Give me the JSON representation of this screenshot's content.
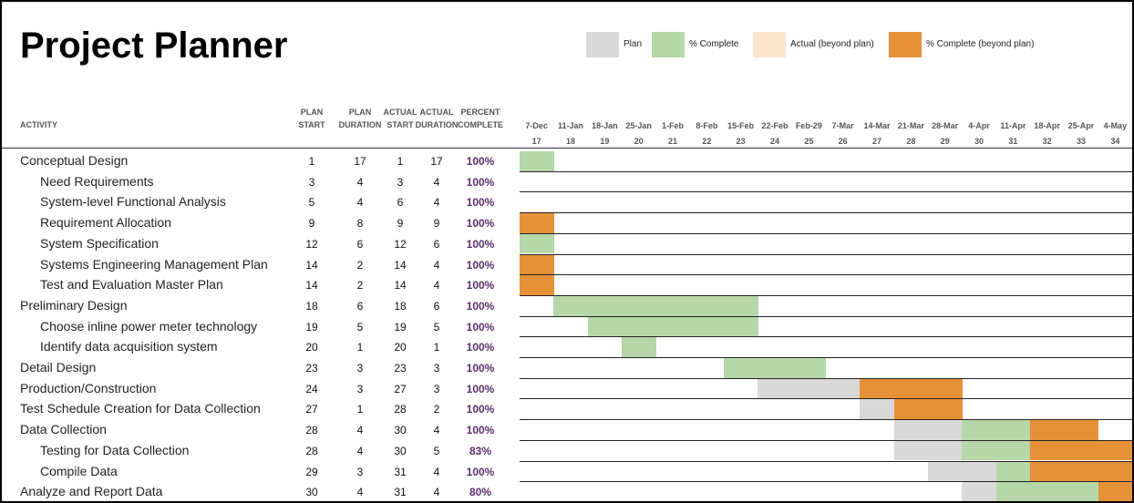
{
  "header": {
    "title": "Project Planner"
  },
  "legend": [
    {
      "label": "Plan",
      "color": "#d9d9d9"
    },
    {
      "label": "% Complete",
      "color": "#b6d7a8"
    },
    {
      "label": "Actual (beyond plan)",
      "color": "#fde4cc"
    },
    {
      "label": "% Complete (beyond plan)",
      "color": "#e69138"
    }
  ],
  "columns": [
    {
      "line1": "",
      "line2": "ACTIVITY"
    },
    {
      "line1": "PLAN",
      "line2": "START"
    },
    {
      "line1": "PLAN",
      "line2": "DURATION"
    },
    {
      "line1": "ACTUAL",
      "line2": "START"
    },
    {
      "line1": "ACTUAL",
      "line2": "DURATION"
    },
    {
      "line1": "PERCENT",
      "line2": "COMPLETE"
    }
  ],
  "periods": [
    {
      "date": "7-Dec",
      "number": 17
    },
    {
      "date": "11-Jan",
      "number": 18
    },
    {
      "date": "18-Jan",
      "number": 19
    },
    {
      "date": "25-Jan",
      "number": 20
    },
    {
      "date": "1-Feb",
      "number": 21
    },
    {
      "date": "8-Feb",
      "number": 22
    },
    {
      "date": "15-Feb",
      "number": 23
    },
    {
      "date": "22-Feb",
      "number": 24
    },
    {
      "date": "Feb-29",
      "number": 25
    },
    {
      "date": "7-Mar",
      "number": 26
    },
    {
      "date": "14-Mar",
      "number": 27
    },
    {
      "date": "21-Mar",
      "number": 28
    },
    {
      "date": "28-Mar",
      "number": 29
    },
    {
      "date": "4-Apr",
      "number": 30
    },
    {
      "date": "11-Apr",
      "number": 31
    },
    {
      "date": "18-Apr",
      "number": 32
    },
    {
      "date": "25-Apr",
      "number": 33
    },
    {
      "date": "4-May",
      "number": 34
    }
  ],
  "tasks": [
    {
      "name": "Conceptual Design",
      "cells": [
        1,
        17,
        1,
        17,
        "100%"
      ],
      "subtasks": [
        {
          "name": "Need Requirements",
          "cells": [
            3,
            4,
            3,
            4,
            "100%"
          ]
        },
        {
          "name": "System-level Functional Analysis",
          "cells": [
            5,
            4,
            6,
            4,
            "100%"
          ]
        },
        {
          "name": "Requirement Allocation",
          "cells": [
            9,
            8,
            9,
            9,
            "100%"
          ]
        },
        {
          "name": "System Specification",
          "cells": [
            12,
            6,
            12,
            6,
            "100%"
          ]
        },
        {
          "name": "Systems Engineering Management Plan",
          "cells": [
            14,
            2,
            14,
            4,
            "100%"
          ]
        },
        {
          "name": "Test and Evaluation Master Plan",
          "cells": [
            14,
            2,
            14,
            4,
            "100%"
          ]
        }
      ]
    },
    {
      "name": "Preliminary Design",
      "cells": [
        18,
        6,
        18,
        6,
        "100%"
      ],
      "subtasks": [
        {
          "name": "Choose inline power meter technology",
          "cells": [
            19,
            5,
            19,
            5,
            "100%"
          ]
        },
        {
          "name": "Identify data acquisition system",
          "cells": [
            20,
            1,
            20,
            1,
            "100%"
          ]
        }
      ]
    },
    {
      "name": "Detail Design",
      "cells": [
        23,
        3,
        23,
        3,
        "100%"
      ],
      "subtasks": []
    },
    {
      "name": "Production/Construction",
      "cells": [
        24,
        3,
        27,
        3,
        "100%"
      ],
      "subtasks": []
    },
    {
      "name": "Test Schedule Creation for Data Collection",
      "cells": [
        27,
        1,
        28,
        2,
        "100%"
      ],
      "subtasks": []
    },
    {
      "name": "Data Collection",
      "cells": [
        28,
        4,
        30,
        4,
        "100%"
      ],
      "subtasks": [
        {
          "name": "Testing for Data Collection",
          "cells": [
            28,
            4,
            30,
            5,
            "83%"
          ]
        },
        {
          "name": "Compile Data",
          "cells": [
            29,
            3,
            31,
            4,
            "100%"
          ]
        }
      ]
    },
    {
      "name": "Analyze and Report Data",
      "cells": [
        30,
        4,
        31,
        4,
        "80%"
      ],
      "subtasks": []
    }
  ]
}
